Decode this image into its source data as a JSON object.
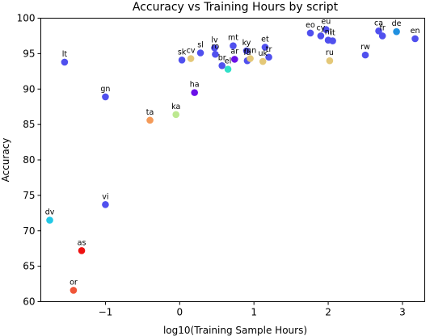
{
  "chart_data": {
    "type": "scatter",
    "title": "Accuracy vs Training Hours by script",
    "xlabel": "log10(Training Sample Hours)",
    "ylabel": "Accuracy",
    "xlim": [
      -1.87,
      3.3
    ],
    "ylim": [
      60,
      100
    ],
    "xticks": [
      -1,
      0,
      1,
      2,
      3
    ],
    "yticks": [
      60,
      65,
      70,
      75,
      80,
      85,
      90,
      95,
      100
    ],
    "xtick_labels": [
      "−1",
      "0",
      "1",
      "2",
      "3"
    ],
    "ytick_labels": [
      "60",
      "65",
      "70",
      "75",
      "80",
      "85",
      "90",
      "95",
      "100"
    ],
    "grid": false,
    "points": [
      {
        "label": "lt",
        "x": -1.55,
        "y": 93.8,
        "color": "#5050ee"
      },
      {
        "label": "gn",
        "x": -1.0,
        "y": 88.9,
        "color": "#5050ee"
      },
      {
        "label": "vi",
        "x": -1.0,
        "y": 73.7,
        "color": "#5050ee"
      },
      {
        "label": "dv",
        "x": -1.75,
        "y": 71.5,
        "color": "#22c8e6"
      },
      {
        "label": "as",
        "x": -1.32,
        "y": 67.2,
        "color": "#ee1111"
      },
      {
        "label": "or",
        "x": -1.43,
        "y": 61.6,
        "color": "#f05538"
      },
      {
        "label": "ta",
        "x": -0.4,
        "y": 85.6,
        "color": "#f49a58"
      },
      {
        "label": "ka",
        "x": -0.05,
        "y": 86.4,
        "color": "#bce890"
      },
      {
        "label": "ha",
        "x": 0.2,
        "y": 89.5,
        "color": "#6a10e8"
      },
      {
        "label": "sk",
        "x": 0.03,
        "y": 94.1,
        "color": "#5050ee"
      },
      {
        "label": "cv",
        "x": 0.15,
        "y": 94.3,
        "color": "#e4c878"
      },
      {
        "label": "sl",
        "x": 0.28,
        "y": 95.1,
        "color": "#5050ee"
      },
      {
        "label": "lv",
        "x": 0.47,
        "y": 95.8,
        "color": "#5050ee"
      },
      {
        "label": "ro",
        "x": 0.48,
        "y": 94.9,
        "color": "#5050ee"
      },
      {
        "label": "br",
        "x": 0.57,
        "y": 93.3,
        "color": "#5050ee"
      },
      {
        "label": "el",
        "x": 0.65,
        "y": 92.8,
        "color": "#30e0c8"
      },
      {
        "label": "mt",
        "x": 0.72,
        "y": 96.1,
        "color": "#5050ee"
      },
      {
        "label": "ar",
        "x": 0.74,
        "y": 94.2,
        "color": "#6a10e8"
      },
      {
        "label": "ky",
        "x": 0.9,
        "y": 95.4,
        "color": "#5050ee"
      },
      {
        "label": "fa",
        "x": 0.91,
        "y": 94.0,
        "color": "#5050ee"
      },
      {
        "label": "mn",
        "x": 0.95,
        "y": 94.3,
        "color": "#e4c878"
      },
      {
        "label": "et",
        "x": 1.15,
        "y": 95.9,
        "color": "#5050ee"
      },
      {
        "label": "uk",
        "x": 1.12,
        "y": 93.9,
        "color": "#e4c878"
      },
      {
        "label": "tr",
        "x": 1.2,
        "y": 94.5,
        "color": "#5050ee"
      },
      {
        "label": "eo",
        "x": 1.76,
        "y": 97.9,
        "color": "#5050ee"
      },
      {
        "label": "cy",
        "x": 1.9,
        "y": 97.5,
        "color": "#5050ee"
      },
      {
        "label": "eu",
        "x": 1.97,
        "y": 98.4,
        "color": "#5050ee"
      },
      {
        "label": "nl",
        "x": 2.0,
        "y": 96.9,
        "color": "#5050ee"
      },
      {
        "label": "it",
        "x": 2.06,
        "y": 96.8,
        "color": "#5050ee"
      },
      {
        "label": "ru",
        "x": 2.02,
        "y": 94.0,
        "color": "#e4c878"
      },
      {
        "label": "rw",
        "x": 2.5,
        "y": 94.8,
        "color": "#5050ee"
      },
      {
        "label": "ca",
        "x": 2.68,
        "y": 98.2,
        "color": "#5050ee"
      },
      {
        "label": "fr",
        "x": 2.73,
        "y": 97.5,
        "color": "#5050ee"
      },
      {
        "label": "de",
        "x": 2.92,
        "y": 98.1,
        "color": "#2090e0"
      },
      {
        "label": "en",
        "x": 3.17,
        "y": 97.1,
        "color": "#5050ee"
      }
    ]
  }
}
